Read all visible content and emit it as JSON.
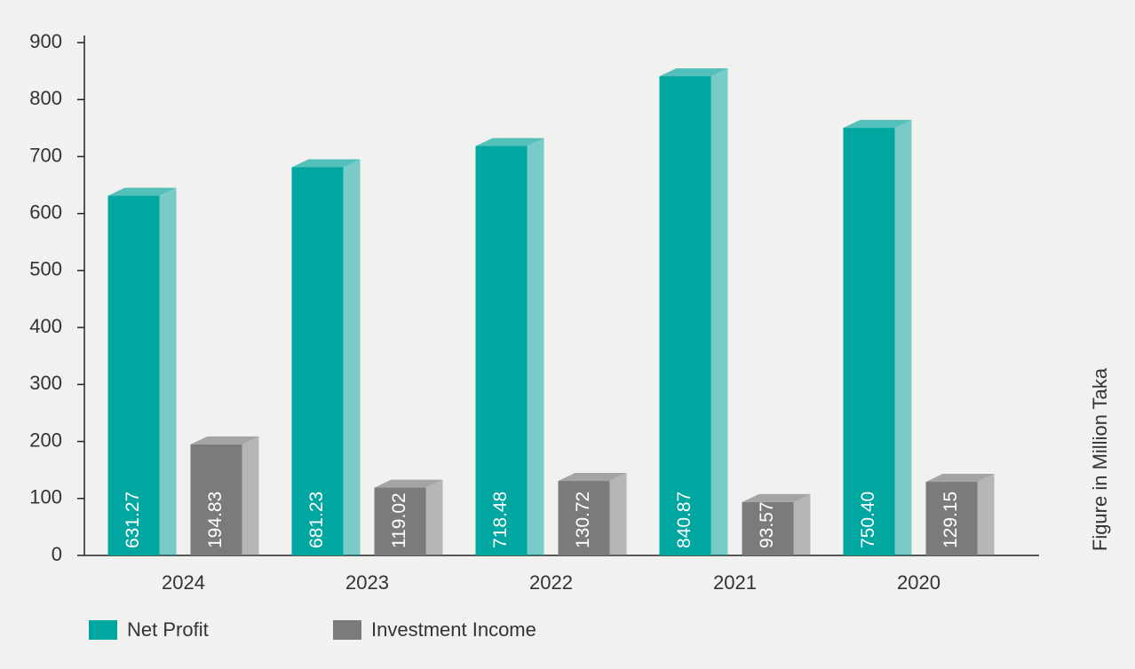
{
  "chart_data": {
    "type": "bar",
    "categories": [
      "2024",
      "2023",
      "2022",
      "2021",
      "2020"
    ],
    "series": [
      {
        "name": "Net Profit",
        "color": "#00a6a0",
        "values": [
          631.27,
          681.23,
          718.48,
          840.87,
          750.4
        ],
        "value_labels": [
          "631.27",
          "681.23",
          "718.48",
          "840.87",
          "750.40"
        ]
      },
      {
        "name": "Investment Income",
        "color": "#7b7b7d",
        "values": [
          194.83,
          119.02,
          130.72,
          93.57,
          129.15
        ],
        "value_labels": [
          "194.83",
          "119.02",
          "130.72",
          "93.57",
          "129.15"
        ]
      }
    ],
    "ylabel": "Figure in Million Taka",
    "ylim": [
      0,
      900
    ],
    "yticks": [
      0,
      100,
      200,
      300,
      400,
      500,
      600,
      700,
      800,
      900
    ],
    "legend": "bottom-left"
  }
}
